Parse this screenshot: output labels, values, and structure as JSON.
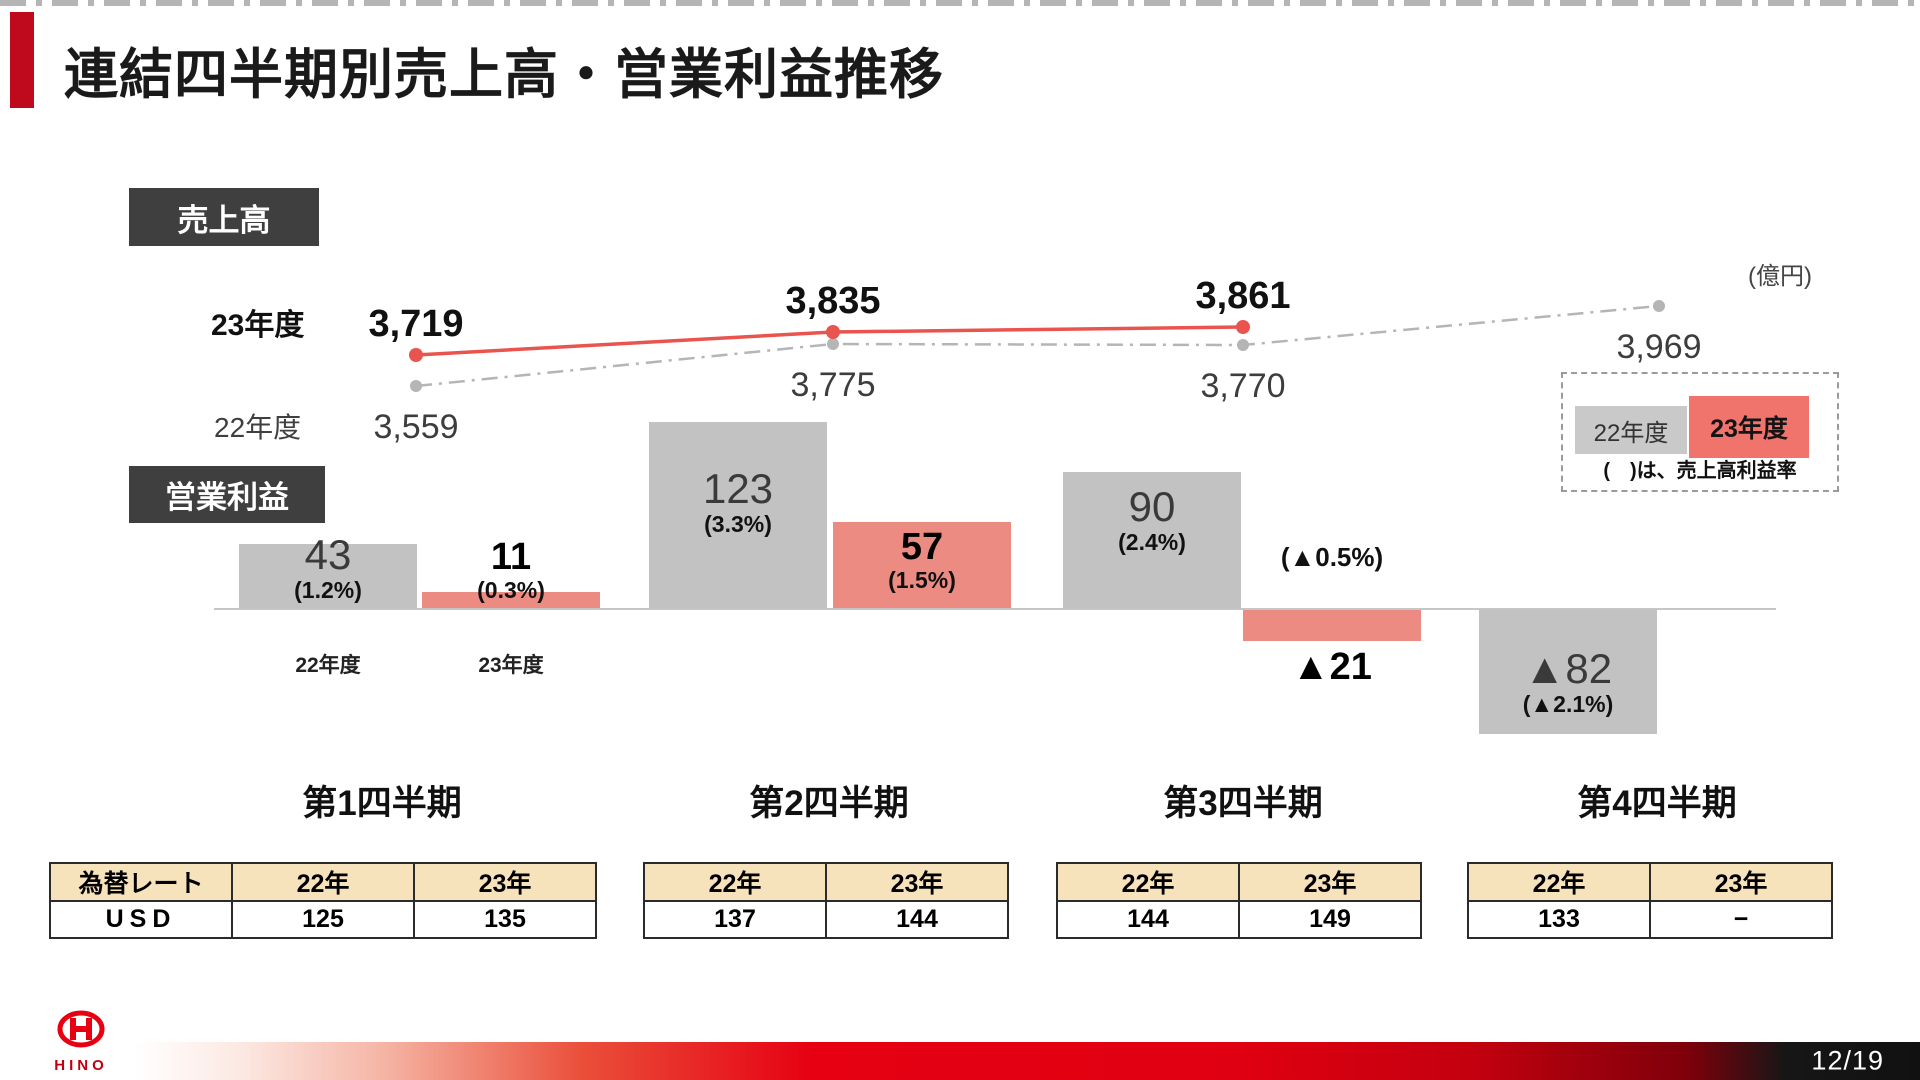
{
  "slide": {
    "title": "連結四半期別売上高・営業利益推移",
    "unit": "(億円)",
    "page": "12/19",
    "logo_text": "HINO"
  },
  "badges": {
    "sales": "売上高",
    "profit": "営業利益"
  },
  "series_labels": {
    "fy23": "23年度",
    "fy22": "22年度"
  },
  "legend": {
    "fy22": "22年度",
    "fy23": "23年度",
    "note": "(　)は、売上高利益率"
  },
  "bar_axis_labels": {
    "fy22": "22年度",
    "fy23": "23年度"
  },
  "quarters": [
    "第1四半期",
    "第2四半期",
    "第3四半期",
    "第4四半期"
  ],
  "chart_data": {
    "type": "combo",
    "unit": "億円",
    "categories": [
      "第1四半期",
      "第2四半期",
      "第3四半期",
      "第4四半期"
    ],
    "subcharts": [
      {
        "type": "line",
        "title": "売上高",
        "legend_position": "right",
        "series": [
          {
            "name": "23年度",
            "color": "#e9544e",
            "style": "solid",
            "values": [
              3719,
              3835,
              3861,
              null
            ],
            "labels": [
              "3,719",
              "3,835",
              "3,861",
              null
            ]
          },
          {
            "name": "22年度",
            "color": "#b5b5b5",
            "style": "dash-dot",
            "values": [
              3559,
              3775,
              3770,
              3969
            ],
            "labels": [
              "3,559",
              "3,775",
              "3,770",
              "3,969"
            ]
          }
        ]
      },
      {
        "type": "bar",
        "title": "営業利益",
        "note": "(　)は、売上高利益率",
        "series": [
          {
            "name": "22年度",
            "color": "#c3c2c2",
            "values": [
              43,
              123,
              90,
              -82
            ],
            "labels": [
              "43",
              "123",
              "90",
              "▲82"
            ],
            "margins": [
              "(1.2%)",
              "(3.3%)",
              "(2.4%)",
              "(▲2.1%)"
            ]
          },
          {
            "name": "23年度",
            "color": "#ec8b82",
            "values": [
              11,
              57,
              -21,
              null
            ],
            "labels": [
              "11",
              "57",
              "▲21",
              null
            ],
            "margins": [
              "(0.3%)",
              "(1.5%)",
              "(▲0.5%)",
              null
            ]
          }
        ]
      }
    ]
  },
  "fx_tables": [
    {
      "cols": [
        "為替レート",
        "22年",
        "23年"
      ],
      "row": [
        "USD",
        "125",
        "135"
      ]
    },
    {
      "cols": [
        "22年",
        "23年"
      ],
      "row": [
        "137",
        "144"
      ]
    },
    {
      "cols": [
        "22年",
        "23年"
      ],
      "row": [
        "144",
        "149"
      ]
    },
    {
      "cols": [
        "22年",
        "23年"
      ],
      "row": [
        "133",
        "−"
      ]
    }
  ],
  "colors": {
    "accent_red": "#bf0a1e",
    "brand_red": "#e60012",
    "line_red": "#e9544e",
    "line_gray": "#b5b5b5",
    "bar_gray": "#c3c2c2",
    "bar_pink": "#ec8b82",
    "badge_bg": "#3f3f3f",
    "table_header_bg": "#f7e3bb"
  }
}
